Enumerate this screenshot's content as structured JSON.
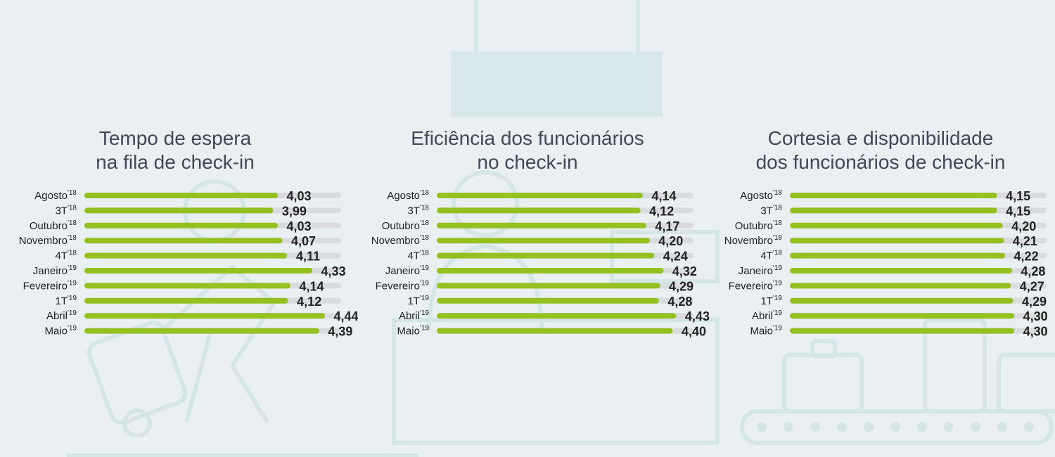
{
  "colors": {
    "background": "#eaeff2",
    "bar_fill": "#94c11f",
    "bar_track": "#d9dbdc",
    "text": "#222222",
    "title": "#3f4a56",
    "illustration": "#d6e5e6"
  },
  "chart_data": [
    {
      "type": "bar",
      "title": "Tempo de espera na fila de check-in",
      "title_lines": [
        "Tempo de espera",
        "na fila de check-in"
      ],
      "categories": [
        {
          "label": "Agosto",
          "sup": "'18"
        },
        {
          "label": "3T",
          "sup": "'18"
        },
        {
          "label": "Outubro",
          "sup": "'18"
        },
        {
          "label": "Novembro",
          "sup": "'18"
        },
        {
          "label": "4T",
          "sup": "'18"
        },
        {
          "label": "Janeiro",
          "sup": "'19"
        },
        {
          "label": "Fevereiro",
          "sup": "'19"
        },
        {
          "label": "1T",
          "sup": "'19"
        },
        {
          "label": "Abril",
          "sup": "'19"
        },
        {
          "label": "Maio",
          "sup": "'19"
        }
      ],
      "values": [
        4.03,
        3.99,
        4.03,
        4.07,
        4.11,
        4.33,
        4.14,
        4.12,
        4.44,
        4.39
      ],
      "value_labels": [
        "4,03",
        "3,99",
        "4,03",
        "4,07",
        "4,11",
        "4,33",
        "4,14",
        "4,12",
        "4,44",
        "4,39"
      ]
    },
    {
      "type": "bar",
      "title": "Eficiência dos funcionários no check-in",
      "title_lines": [
        "Eficiência dos funcionários",
        "no check-in"
      ],
      "categories": [
        {
          "label": "Agosto",
          "sup": "'18"
        },
        {
          "label": "3T",
          "sup": "'18"
        },
        {
          "label": "Outubro",
          "sup": "'18"
        },
        {
          "label": "Novembro",
          "sup": "'18"
        },
        {
          "label": "4T",
          "sup": "'18"
        },
        {
          "label": "Janeiro",
          "sup": "'19"
        },
        {
          "label": "Fevereiro",
          "sup": "'19"
        },
        {
          "label": "1T",
          "sup": "'19"
        },
        {
          "label": "Abril",
          "sup": "'19"
        },
        {
          "label": "Maio",
          "sup": "'19"
        }
      ],
      "values": [
        4.14,
        4.12,
        4.17,
        4.2,
        4.24,
        4.32,
        4.29,
        4.28,
        4.43,
        4.4
      ],
      "value_labels": [
        "4,14",
        "4,12",
        "4,17",
        "4,20",
        "4,24",
        "4,32",
        "4,29",
        "4,28",
        "4,43",
        "4,40"
      ]
    },
    {
      "type": "bar",
      "title": "Cortesia e disponibilidade dos funcionários de check-in",
      "title_lines": [
        "Cortesia e disponibilidade",
        "dos funcionários de check-in"
      ],
      "categories": [
        {
          "label": "Agosto",
          "sup": "'18"
        },
        {
          "label": "3T",
          "sup": "'18"
        },
        {
          "label": "Outubro",
          "sup": "'18"
        },
        {
          "label": "Novembro",
          "sup": "'18"
        },
        {
          "label": "4T",
          "sup": "'18"
        },
        {
          "label": "Janeiro",
          "sup": "'19"
        },
        {
          "label": "Fevereiro",
          "sup": "'19"
        },
        {
          "label": "1T",
          "sup": "'19"
        },
        {
          "label": "Abril",
          "sup": "'19"
        },
        {
          "label": "Maio",
          "sup": "'19"
        }
      ],
      "values": [
        4.15,
        4.15,
        4.2,
        4.21,
        4.22,
        4.28,
        4.27,
        4.29,
        4.3,
        4.3
      ],
      "value_labels": [
        "4,15",
        "4,15",
        "4,20",
        "4,21",
        "4,22",
        "4,28",
        "4,27",
        "4,29",
        "4,30",
        "4,30"
      ]
    }
  ]
}
